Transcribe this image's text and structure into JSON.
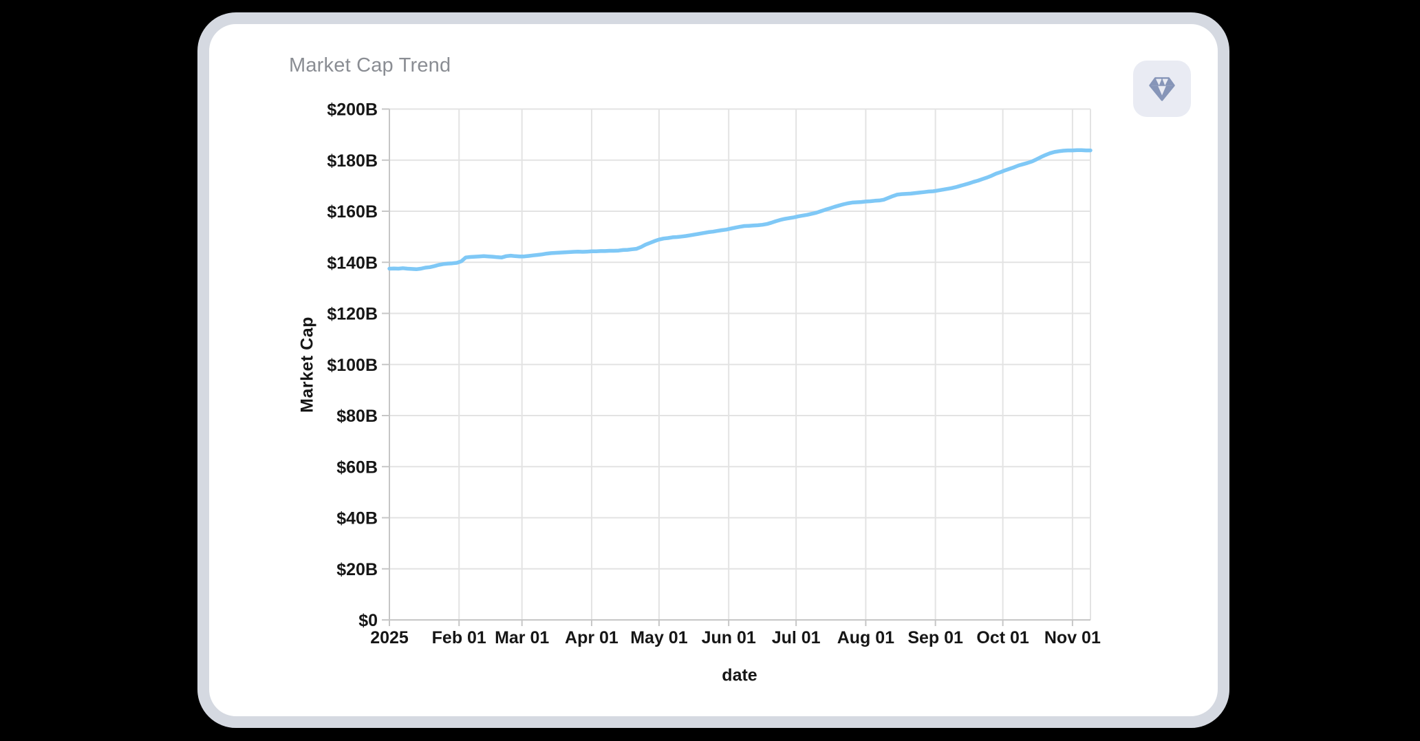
{
  "card": {
    "title": "Market Cap Trend"
  },
  "toolbar": {
    "gem_button": {
      "icon": "gem-icon"
    }
  },
  "colors": {
    "page_background": "#000000",
    "card_background": "#ffffff",
    "card_border": "#D5D9E1",
    "title_text": "#8A8D93",
    "icon_button_background": "#E9EBF3",
    "icon_glyph": "#8695B8"
  },
  "chart_data": {
    "type": "line",
    "title": "Market Cap Trend",
    "xlabel": "date",
    "ylabel": "Market Cap",
    "value_unit": "$B",
    "x_domain": [
      "2025-01-01",
      "2025-11-09"
    ],
    "ylim": [
      0,
      200
    ],
    "grid": true,
    "legend": "none",
    "line_color": "#7FC8F6",
    "grid_color": "#E3E3E3",
    "axis_color": "#C6C6C6",
    "tick_label_color": "#161616",
    "y_ticks": [
      {
        "value": 0,
        "label": "$0"
      },
      {
        "value": 20,
        "label": "$20B"
      },
      {
        "value": 40,
        "label": "$40B"
      },
      {
        "value": 60,
        "label": "$60B"
      },
      {
        "value": 80,
        "label": "$80B"
      },
      {
        "value": 100,
        "label": "$100B"
      },
      {
        "value": 120,
        "label": "$120B"
      },
      {
        "value": 140,
        "label": "$140B"
      },
      {
        "value": 160,
        "label": "$160B"
      },
      {
        "value": 180,
        "label": "$180B"
      },
      {
        "value": 200,
        "label": "$200B"
      }
    ],
    "x_ticks": [
      {
        "date": "2025-01-01",
        "label": "2025"
      },
      {
        "date": "2025-02-01",
        "label": "Feb 01"
      },
      {
        "date": "2025-03-01",
        "label": "Mar 01"
      },
      {
        "date": "2025-04-01",
        "label": "Apr 01"
      },
      {
        "date": "2025-05-01",
        "label": "May 01"
      },
      {
        "date": "2025-06-01",
        "label": "Jun 01"
      },
      {
        "date": "2025-07-01",
        "label": "Jul 01"
      },
      {
        "date": "2025-08-01",
        "label": "Aug 01"
      },
      {
        "date": "2025-09-01",
        "label": "Sep 01"
      },
      {
        "date": "2025-10-01",
        "label": "Oct 01"
      },
      {
        "date": "2025-11-01",
        "label": "Nov 01"
      }
    ],
    "series": [
      {
        "name": "market_cap",
        "dates": [
          "2025-01-01",
          "2025-01-03",
          "2025-01-05",
          "2025-01-07",
          "2025-01-09",
          "2025-01-11",
          "2025-01-13",
          "2025-01-15",
          "2025-01-17",
          "2025-01-19",
          "2025-01-21",
          "2025-01-23",
          "2025-01-25",
          "2025-01-27",
          "2025-01-29",
          "2025-01-31",
          "2025-02-02",
          "2025-02-04",
          "2025-02-06",
          "2025-02-08",
          "2025-02-10",
          "2025-02-12",
          "2025-02-14",
          "2025-02-16",
          "2025-02-18",
          "2025-02-20",
          "2025-02-22",
          "2025-02-24",
          "2025-02-26",
          "2025-02-28",
          "2025-03-02",
          "2025-03-04",
          "2025-03-06",
          "2025-03-08",
          "2025-03-10",
          "2025-03-12",
          "2025-03-14",
          "2025-03-16",
          "2025-03-18",
          "2025-03-20",
          "2025-03-22",
          "2025-03-24",
          "2025-03-26",
          "2025-03-28",
          "2025-03-30",
          "2025-04-01",
          "2025-04-03",
          "2025-04-05",
          "2025-04-07",
          "2025-04-09",
          "2025-04-11",
          "2025-04-13",
          "2025-04-15",
          "2025-04-17",
          "2025-04-19",
          "2025-04-21",
          "2025-04-23",
          "2025-04-25",
          "2025-04-27",
          "2025-04-29",
          "2025-05-01",
          "2025-05-03",
          "2025-05-05",
          "2025-05-07",
          "2025-05-09",
          "2025-05-11",
          "2025-05-13",
          "2025-05-15",
          "2025-05-17",
          "2025-05-19",
          "2025-05-21",
          "2025-05-23",
          "2025-05-25",
          "2025-05-27",
          "2025-05-29",
          "2025-05-31",
          "2025-06-02",
          "2025-06-04",
          "2025-06-06",
          "2025-06-08",
          "2025-06-10",
          "2025-06-12",
          "2025-06-14",
          "2025-06-16",
          "2025-06-18",
          "2025-06-20",
          "2025-06-22",
          "2025-06-24",
          "2025-06-26",
          "2025-06-28",
          "2025-06-30",
          "2025-07-02",
          "2025-07-04",
          "2025-07-06",
          "2025-07-08",
          "2025-07-10",
          "2025-07-12",
          "2025-07-14",
          "2025-07-16",
          "2025-07-18",
          "2025-07-20",
          "2025-07-22",
          "2025-07-24",
          "2025-07-26",
          "2025-07-28",
          "2025-07-30",
          "2025-08-01",
          "2025-08-03",
          "2025-08-05",
          "2025-08-07",
          "2025-08-09",
          "2025-08-11",
          "2025-08-13",
          "2025-08-15",
          "2025-08-17",
          "2025-08-19",
          "2025-08-21",
          "2025-08-23",
          "2025-08-25",
          "2025-08-27",
          "2025-08-29",
          "2025-08-31",
          "2025-09-02",
          "2025-09-04",
          "2025-09-06",
          "2025-09-08",
          "2025-09-10",
          "2025-09-12",
          "2025-09-14",
          "2025-09-16",
          "2025-09-18",
          "2025-09-20",
          "2025-09-22",
          "2025-09-24",
          "2025-09-26",
          "2025-09-28",
          "2025-09-30",
          "2025-10-02",
          "2025-10-04",
          "2025-10-06",
          "2025-10-08",
          "2025-10-10",
          "2025-10-12",
          "2025-10-14",
          "2025-10-16",
          "2025-10-18",
          "2025-10-20",
          "2025-10-22",
          "2025-10-24",
          "2025-10-26",
          "2025-10-28",
          "2025-10-30",
          "2025-11-01",
          "2025-11-03",
          "2025-11-05",
          "2025-11-07",
          "2025-11-09"
        ],
        "values": [
          137.5,
          137.6,
          137.5,
          137.7,
          137.5,
          137.4,
          137.3,
          137.5,
          137.9,
          138.1,
          138.5,
          139.0,
          139.3,
          139.5,
          139.6,
          139.8,
          140.4,
          141.9,
          142.1,
          142.2,
          142.3,
          142.4,
          142.3,
          142.2,
          142.0,
          141.9,
          142.4,
          142.6,
          142.4,
          142.3,
          142.3,
          142.5,
          142.7,
          142.9,
          143.1,
          143.4,
          143.6,
          143.7,
          143.8,
          143.9,
          144.0,
          144.1,
          144.2,
          144.1,
          144.2,
          144.3,
          144.3,
          144.4,
          144.4,
          144.5,
          144.5,
          144.6,
          144.8,
          144.9,
          145.1,
          145.3,
          146.0,
          146.9,
          147.6,
          148.3,
          148.9,
          149.3,
          149.5,
          149.8,
          149.9,
          150.1,
          150.3,
          150.6,
          150.9,
          151.2,
          151.5,
          151.8,
          152.0,
          152.3,
          152.6,
          152.8,
          153.2,
          153.6,
          153.9,
          154.2,
          154.3,
          154.4,
          154.5,
          154.7,
          155.0,
          155.5,
          156.1,
          156.6,
          157.0,
          157.3,
          157.6,
          158.0,
          158.3,
          158.6,
          159.0,
          159.4,
          160.0,
          160.6,
          161.1,
          161.7,
          162.2,
          162.7,
          163.1,
          163.4,
          163.5,
          163.6,
          163.8,
          163.9,
          164.1,
          164.2,
          164.5,
          165.2,
          165.9,
          166.5,
          166.7,
          166.8,
          166.9,
          167.1,
          167.3,
          167.5,
          167.7,
          167.8,
          168.1,
          168.4,
          168.7,
          169.0,
          169.4,
          169.9,
          170.4,
          170.9,
          171.5,
          172.0,
          172.6,
          173.2,
          173.9,
          174.7,
          175.3,
          176.0,
          176.6,
          177.2,
          177.9,
          178.4,
          178.9,
          179.5,
          180.3,
          181.2,
          182.0,
          182.7,
          183.2,
          183.5,
          183.7,
          183.8,
          183.8,
          183.9,
          183.9,
          183.8,
          183.8
        ]
      }
    ]
  }
}
